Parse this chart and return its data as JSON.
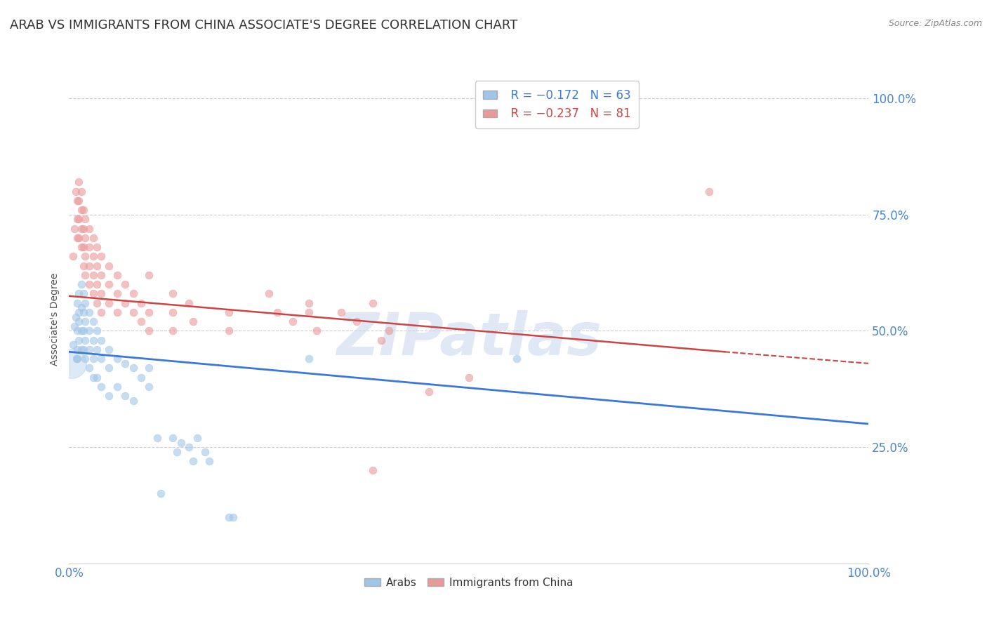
{
  "title": "ARAB VS IMMIGRANTS FROM CHINA ASSOCIATE'S DEGREE CORRELATION CHART",
  "source": "Source: ZipAtlas.com",
  "ylabel": "Associate's Degree",
  "ytick_labels": [
    "25.0%",
    "50.0%",
    "75.0%",
    "100.0%"
  ],
  "ytick_values": [
    0.25,
    0.5,
    0.75,
    1.0
  ],
  "xtick_labels": [
    "0.0%",
    "100.0%"
  ],
  "xtick_values": [
    0.0,
    1.0
  ],
  "xlim": [
    0.0,
    1.0
  ],
  "ylim": [
    0.0,
    1.05
  ],
  "legend_blue_r": "R = −0.172",
  "legend_blue_n": "N = 63",
  "legend_pink_r": "R = −0.237",
  "legend_pink_n": "N = 81",
  "blue_color": "#9fc5e8",
  "pink_color": "#ea9999",
  "blue_line_color": "#3c78d8",
  "pink_line_color": "#cc4444",
  "watermark": "ZIPatlas",
  "blue_scatter": [
    [
      0.005,
      0.47
    ],
    [
      0.007,
      0.51
    ],
    [
      0.008,
      0.53
    ],
    [
      0.009,
      0.44
    ],
    [
      0.01,
      0.56
    ],
    [
      0.01,
      0.5
    ],
    [
      0.01,
      0.46
    ],
    [
      0.01,
      0.44
    ],
    [
      0.012,
      0.58
    ],
    [
      0.012,
      0.54
    ],
    [
      0.012,
      0.52
    ],
    [
      0.012,
      0.48
    ],
    [
      0.015,
      0.6
    ],
    [
      0.015,
      0.55
    ],
    [
      0.015,
      0.5
    ],
    [
      0.015,
      0.46
    ],
    [
      0.018,
      0.58
    ],
    [
      0.018,
      0.54
    ],
    [
      0.018,
      0.5
    ],
    [
      0.018,
      0.46
    ],
    [
      0.02,
      0.56
    ],
    [
      0.02,
      0.52
    ],
    [
      0.02,
      0.48
    ],
    [
      0.02,
      0.44
    ],
    [
      0.025,
      0.54
    ],
    [
      0.025,
      0.5
    ],
    [
      0.025,
      0.46
    ],
    [
      0.025,
      0.42
    ],
    [
      0.03,
      0.52
    ],
    [
      0.03,
      0.48
    ],
    [
      0.03,
      0.44
    ],
    [
      0.03,
      0.4
    ],
    [
      0.035,
      0.5
    ],
    [
      0.035,
      0.46
    ],
    [
      0.035,
      0.4
    ],
    [
      0.04,
      0.48
    ],
    [
      0.04,
      0.44
    ],
    [
      0.04,
      0.38
    ],
    [
      0.05,
      0.46
    ],
    [
      0.05,
      0.42
    ],
    [
      0.05,
      0.36
    ],
    [
      0.06,
      0.44
    ],
    [
      0.06,
      0.38
    ],
    [
      0.07,
      0.43
    ],
    [
      0.07,
      0.36
    ],
    [
      0.08,
      0.42
    ],
    [
      0.08,
      0.35
    ],
    [
      0.09,
      0.4
    ],
    [
      0.1,
      0.42
    ],
    [
      0.1,
      0.38
    ],
    [
      0.11,
      0.27
    ],
    [
      0.115,
      0.15
    ],
    [
      0.13,
      0.27
    ],
    [
      0.135,
      0.24
    ],
    [
      0.14,
      0.26
    ],
    [
      0.15,
      0.25
    ],
    [
      0.155,
      0.22
    ],
    [
      0.16,
      0.27
    ],
    [
      0.17,
      0.24
    ],
    [
      0.175,
      0.22
    ],
    [
      0.2,
      0.1
    ],
    [
      0.205,
      0.1
    ],
    [
      0.3,
      0.44
    ],
    [
      0.56,
      0.44
    ]
  ],
  "blue_scatter_large": [
    [
      0.003,
      0.43
    ]
  ],
  "pink_scatter": [
    [
      0.005,
      0.66
    ],
    [
      0.007,
      0.72
    ],
    [
      0.008,
      0.8
    ],
    [
      0.01,
      0.78
    ],
    [
      0.01,
      0.74
    ],
    [
      0.01,
      0.7
    ],
    [
      0.012,
      0.82
    ],
    [
      0.012,
      0.78
    ],
    [
      0.012,
      0.74
    ],
    [
      0.012,
      0.7
    ],
    [
      0.015,
      0.8
    ],
    [
      0.015,
      0.76
    ],
    [
      0.015,
      0.72
    ],
    [
      0.015,
      0.68
    ],
    [
      0.018,
      0.76
    ],
    [
      0.018,
      0.72
    ],
    [
      0.018,
      0.68
    ],
    [
      0.018,
      0.64
    ],
    [
      0.02,
      0.74
    ],
    [
      0.02,
      0.7
    ],
    [
      0.02,
      0.66
    ],
    [
      0.02,
      0.62
    ],
    [
      0.025,
      0.72
    ],
    [
      0.025,
      0.68
    ],
    [
      0.025,
      0.64
    ],
    [
      0.025,
      0.6
    ],
    [
      0.03,
      0.7
    ],
    [
      0.03,
      0.66
    ],
    [
      0.03,
      0.62
    ],
    [
      0.03,
      0.58
    ],
    [
      0.035,
      0.68
    ],
    [
      0.035,
      0.64
    ],
    [
      0.035,
      0.6
    ],
    [
      0.035,
      0.56
    ],
    [
      0.04,
      0.66
    ],
    [
      0.04,
      0.62
    ],
    [
      0.04,
      0.58
    ],
    [
      0.04,
      0.54
    ],
    [
      0.05,
      0.64
    ],
    [
      0.05,
      0.6
    ],
    [
      0.05,
      0.56
    ],
    [
      0.06,
      0.62
    ],
    [
      0.06,
      0.58
    ],
    [
      0.06,
      0.54
    ],
    [
      0.07,
      0.6
    ],
    [
      0.07,
      0.56
    ],
    [
      0.08,
      0.58
    ],
    [
      0.08,
      0.54
    ],
    [
      0.09,
      0.56
    ],
    [
      0.09,
      0.52
    ],
    [
      0.1,
      0.62
    ],
    [
      0.1,
      0.54
    ],
    [
      0.1,
      0.5
    ],
    [
      0.13,
      0.58
    ],
    [
      0.13,
      0.54
    ],
    [
      0.13,
      0.5
    ],
    [
      0.15,
      0.56
    ],
    [
      0.155,
      0.52
    ],
    [
      0.2,
      0.54
    ],
    [
      0.2,
      0.5
    ],
    [
      0.25,
      0.58
    ],
    [
      0.26,
      0.54
    ],
    [
      0.28,
      0.52
    ],
    [
      0.3,
      0.56
    ],
    [
      0.31,
      0.5
    ],
    [
      0.34,
      0.54
    ],
    [
      0.36,
      0.52
    ],
    [
      0.38,
      0.56
    ],
    [
      0.39,
      0.48
    ],
    [
      0.4,
      0.5
    ],
    [
      0.38,
      0.2
    ],
    [
      0.45,
      0.37
    ],
    [
      0.3,
      0.54
    ],
    [
      0.5,
      0.4
    ],
    [
      0.8,
      0.8
    ]
  ],
  "blue_line": [
    [
      0.0,
      0.455
    ],
    [
      1.0,
      0.3
    ]
  ],
  "pink_line_solid": [
    [
      0.0,
      0.575
    ],
    [
      0.82,
      0.455
    ]
  ],
  "pink_line_dash": [
    [
      0.82,
      0.455
    ],
    [
      1.0,
      0.43
    ]
  ],
  "blue_dot_size": 60,
  "pink_dot_size": 60,
  "blue_large_size": 900,
  "background_color": "#ffffff",
  "grid_color": "#cccccc",
  "axis_color": "#4a86c8",
  "title_color": "#333333",
  "title_fontsize": 13,
  "source_fontsize": 9,
  "ylabel_fontsize": 10,
  "tick_fontsize": 12,
  "legend_fontsize": 12
}
